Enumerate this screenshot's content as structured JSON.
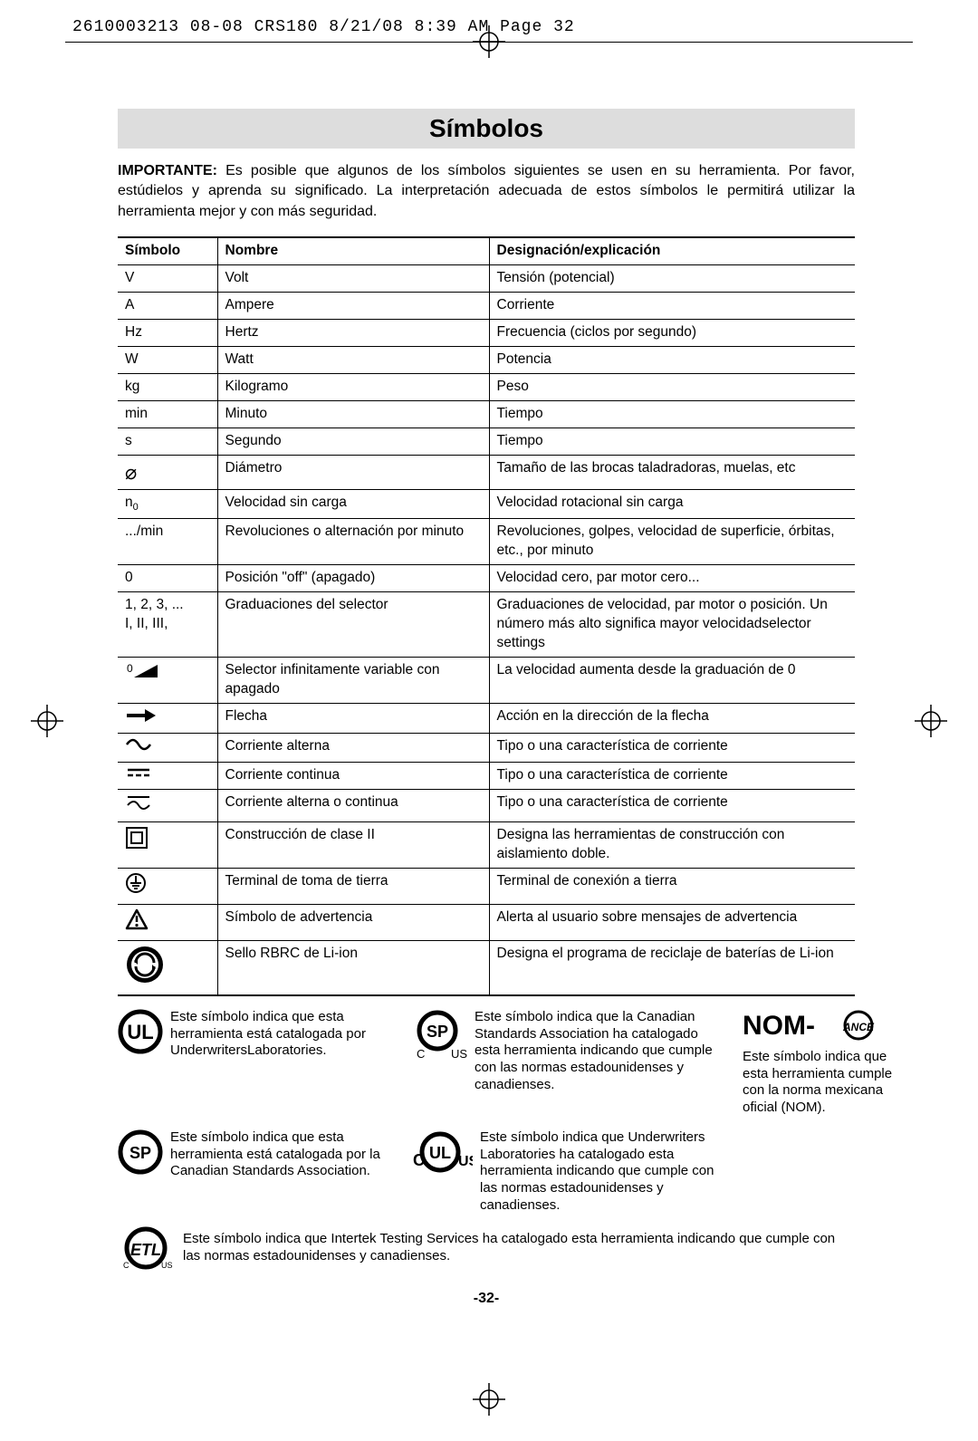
{
  "header_line": "2610003213 08-08 CRS180  8/21/08  8:39 AM  Page 32",
  "title": "Símbolos",
  "intro_bold": "IMPORTANTE:",
  "intro_text": " Es posible que algunos de los símbolos siguientes se usen en su herramienta.  Por favor, estúdielos y aprenda su significado.  La interpretación adecuada de estos símbolos le permitirá utilizar la herramienta mejor y con más seguridad.",
  "columns": {
    "c1": "Símbolo",
    "c2": "Nombre",
    "c3": "Designación/explicación"
  },
  "rows": [
    {
      "sym": "V",
      "name": "Volt",
      "desc": "Tensión (potencial)"
    },
    {
      "sym": "A",
      "name": "Ampere",
      "desc": "Corriente"
    },
    {
      "sym": "Hz",
      "name": "Hertz",
      "desc": "Frecuencia (ciclos por segundo)"
    },
    {
      "sym": "W",
      "name": "Watt",
      "desc": "Potencia"
    },
    {
      "sym": "kg",
      "name": "Kilogramo",
      "desc": "Peso"
    },
    {
      "sym": "min",
      "name": "Minuto",
      "desc": "Tiempo"
    },
    {
      "sym": "s",
      "name": "Segundo",
      "desc": "Tiempo"
    },
    {
      "sym": "__DIAM__",
      "name": "Diámetro",
      "desc": "Tamaño de las brocas taladradoras, muelas, etc"
    },
    {
      "sym": "__N0__",
      "name": "Velocidad sin carga",
      "desc": "Velocidad rotacional sin carga"
    },
    {
      "sym": ".../min",
      "name": "Revoluciones o alternación por minuto",
      "desc": "Revoluciones, golpes, velocidad de superficie, órbitas, etc., por minuto"
    },
    {
      "sym": "0",
      "name": "Posición \"off\" (apagado)",
      "desc": "Velocidad cero, par motor cero..."
    },
    {
      "sym": "1, 2, 3, ...\nI, II, III,",
      "name": "Graduaciones del selector",
      "desc": "Graduaciones de velocidad, par motor o posición.  Un número más alto significa mayor velocidadselector settings"
    },
    {
      "sym": "__RAMP__",
      "name": "Selector infinitamente variable con apagado",
      "desc": "La velocidad aumenta desde la graduación de 0"
    },
    {
      "sym": "__ARROW__",
      "name": "Flecha",
      "desc": "Acción en la dirección de la flecha"
    },
    {
      "sym": "__AC__",
      "name": "Corriente alterna",
      "desc": "Tipo o una característica de corriente"
    },
    {
      "sym": "__DC__",
      "name": "Corriente continua",
      "desc": "Tipo o una característica de corriente"
    },
    {
      "sym": "__ACDC__",
      "name": "Corriente alterna o continua",
      "desc": "Tipo o una característica de corriente"
    },
    {
      "sym": "__CLASS2__",
      "name": "Construcción de clase II",
      "desc": "Designa las herramientas de construcción con aislamiento doble."
    },
    {
      "sym": "__EARTH__",
      "name": "Terminal de toma de tierra",
      "desc": "Terminal de conexión a tierra"
    },
    {
      "sym": "__WARN__",
      "name": "Símbolo de advertencia",
      "desc": "Alerta al usuario sobre mensajes de advertencia"
    },
    {
      "sym": "__RBRC__",
      "name": "Sello RBRC de Li-ion",
      "desc": "Designa el programa de reciclaje de baterías de Li-ion"
    }
  ],
  "certs": {
    "ul": "Este símbolo indica que esta herramienta está catalogada por UnderwritersLaboratories.",
    "csa": "Este símbolo indica que esta herramienta está catalogada por la Canadian Standards Association.",
    "csa_us": "Este símbolo indica que la Canadian Standards Association ha catalogado esta herramienta indicando que cumple con las normas estadounidenses y canadienses.",
    "cul_us": "Este símbolo indica que Underwriters Laboratories ha catalogado esta herramienta indicando que cumple con las normas estadounidenses y canadienses.",
    "nom": "Este símbolo indica que esta herramienta cumple con la norma mexicana oficial (NOM).",
    "etl": "Este símbolo indica que Intertek Testing Services ha catalogado esta herramienta indicando que cumple con las normas estadounidenses y canadienses."
  },
  "page_number": "-32-"
}
